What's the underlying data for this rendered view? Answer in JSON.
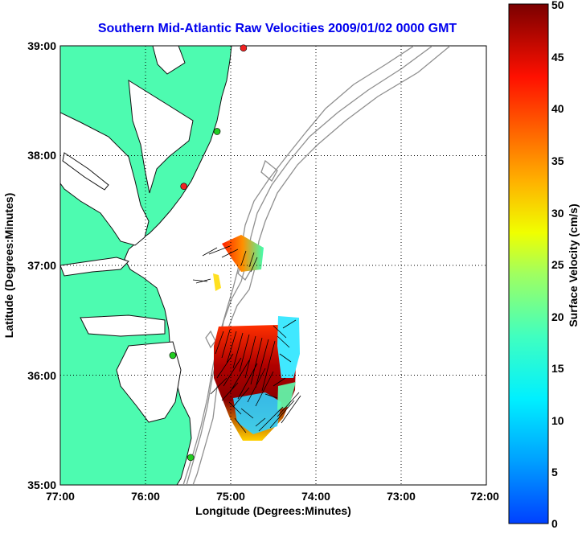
{
  "title": "Southern Mid-Atlantic Raw Velocities 2009/01/02 0000 GMT",
  "axes": {
    "xlabel": "Longitude (Degrees:Minutes)",
    "ylabel": "Latitude (Degrees:Minutes)",
    "x_ticks": [
      "77:00",
      "76:00",
      "75:00",
      "74:00",
      "73:00",
      "72:00"
    ],
    "y_ticks": [
      "39:00",
      "38:00",
      "37:00",
      "36:00",
      "35:00"
    ]
  },
  "colorbar": {
    "label": "Surface Velocity (cm/s)",
    "ticks": [
      "50",
      "45",
      "40",
      "35",
      "30",
      "25",
      "20",
      "15",
      "10",
      "5",
      "0"
    ],
    "min": 0,
    "max": 50
  },
  "colors": {
    "title": "#0000ee",
    "land": "#4dfbb0",
    "bathymetry": "#909090",
    "station_green": "#22cc22",
    "station_red": "#ee2222"
  },
  "chart_data": {
    "type": "map",
    "xlim": [
      -77.0,
      -72.0
    ],
    "ylim": [
      35.0,
      39.0
    ],
    "grid": true,
    "stations": [
      {
        "lon": -74.85,
        "lat": 38.98,
        "status": "red"
      },
      {
        "lon": -75.16,
        "lat": 38.22,
        "status": "green"
      },
      {
        "lon": -75.55,
        "lat": 37.72,
        "status": "red"
      },
      {
        "lon": -75.68,
        "lat": 36.18,
        "status": "green"
      },
      {
        "lon": -75.47,
        "lat": 35.25,
        "status": "green"
      }
    ]
  }
}
